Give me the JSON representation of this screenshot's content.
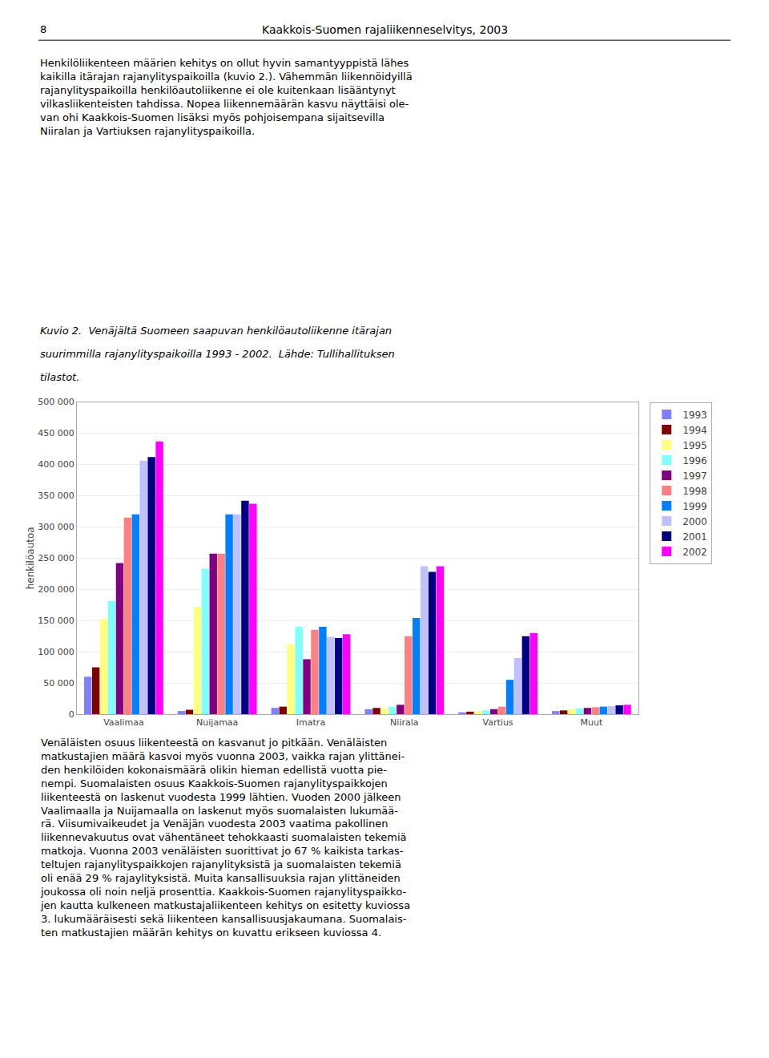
{
  "chart_data": {
    "type": "bar",
    "title": "Kaakkois-Suomen rajaliikenneselvitys, 2003",
    "annotations": [
      "8",
      "Henkilöliikenteen määrien kehitys on ollut hyvin samantyyppistä lähes\nkaikilla itärajan rajanylityspaikoilla (kuvio 2.). Vähemmän liikennöidyillä\nrajanylityspaikoilla henkilöautoliikenne ei ole kuitenkaan lisääntynyt\nvilkasliikenteisten tahdissa. Nopea liikennemäärän kasvu näyttäisi ole-\nvan ohi Kaakkois-Suomen lisäksi myös pohjoisempana sijaitsevilla\nNiiralan ja Vartiuksen rajanylityspaikoilla.",
      "Kuvio 2.  Venäjältä Suomeen saapuvan henkilöautoliikenne itärajan",
      "suurimmilla rajanylityspaikoilla 1993 - 2002.  Lähde: Tullihallituksen",
      "tilastot.",
      "Venäläisten osuus liikenteestä on kasvanut jo pitkään. Venäläisten\nmatkustajien määrä kasvoi myös vuonna 2003, vaikka rajan ylittänei-\nden henkilöiden kokonaismäärä olikin hieman edellistä vuotta pie-\nnempi. Suomalaisten osuus Kaakkois-Suomen rajanylityspaikkojen\nliikenteestä on laskenut vuodesta 1999 lähtien. Vuoden 2000 jälkeen\nVaalimaalla ja Nuijamaalla on laskenut myös suomalaisten lukumää-\nrä. Viisumivaikeudet ja Venäjän vuodesta 2003 vaatima pakollinen\nliikennevakuutus ovat vähentäneet tehokkaasti suomalaisten tekemiä\nmatkoja. Vuonna 2003 venäläisten suorittivat jo 67 % kaikista tarkas-\nteltujen rajanylityspaikkojen rajanylityksistä ja suomalaisten tekemiä\noli enää 29 % rajaylityksistä. Muita kansallisuuksia rajan ylittäneiden\njoukossa oli noin neljä prosenttia. Kaakkois-Suomen rajanylityspaikko-\njen kautta kulkeneen matkustajaliikenteen kehitys on esitetty kuviossa\n3. lukumääräisesti sekä liikenteen kansallisuusjakaumana. Suomalais-\nten matkustajien määrän kehitys on kuvattu erikseen kuviossa 4."
    ],
    "ylabel": "henkilöautoa",
    "categories": [
      "Vaalimaa",
      "Nuijamaa",
      "Imatra",
      "Niirala",
      "Vartius",
      "Muut"
    ],
    "series": [
      {
        "name": "1993",
        "color": "#8080ff",
        "values": [
          60000,
          5000,
          10000,
          8000,
          3000,
          5000
        ]
      },
      {
        "name": "1994",
        "color": "#800000",
        "values": [
          75000,
          7000,
          12000,
          10000,
          4000,
          6000
        ]
      },
      {
        "name": "1995",
        "color": "#ffff80",
        "values": [
          152000,
          172000,
          112000,
          10000,
          5000,
          8000
        ]
      },
      {
        "name": "1996",
        "color": "#80ffff",
        "values": [
          181000,
          233000,
          140000,
          12000,
          6000,
          9000
        ]
      },
      {
        "name": "1997",
        "color": "#800080",
        "values": [
          242000,
          257000,
          88000,
          15000,
          8000,
          10000
        ]
      },
      {
        "name": "1998",
        "color": "#ff8080",
        "values": [
          315000,
          257000,
          135000,
          125000,
          12000,
          11000
        ]
      },
      {
        "name": "1999",
        "color": "#0080ff",
        "values": [
          320000,
          320000,
          140000,
          154000,
          55000,
          12000
        ]
      },
      {
        "name": "2000",
        "color": "#c0c0ff",
        "values": [
          406000,
          320000,
          124000,
          237000,
          90000,
          13000
        ]
      },
      {
        "name": "2001",
        "color": "#000080",
        "values": [
          412000,
          342000,
          122000,
          228000,
          125000,
          14000
        ]
      },
      {
        "name": "2002",
        "color": "#ff00ff",
        "values": [
          437000,
          337000,
          128000,
          237000,
          130000,
          15000
        ]
      }
    ],
    "ylim": [
      0,
      500000
    ],
    "yticks": [
      0,
      {
        "value": 50000,
        "label": "50 000"
      },
      {
        "value": 100000,
        "label": "100 000"
      },
      {
        "value": 150000,
        "label": "150 000"
      },
      {
        "value": 200000,
        "label": "200 000"
      },
      {
        "value": 250000,
        "label": "250 000"
      },
      {
        "value": 300000,
        "label": "300 000"
      },
      {
        "value": 350000,
        "label": "350 000"
      },
      {
        "value": 400000,
        "label": "400 000"
      },
      {
        "value": 450000,
        "label": "450 000"
      },
      {
        "value": 500000,
        "label": "500 000"
      }
    ],
    "grid": true,
    "legend": "right"
  }
}
